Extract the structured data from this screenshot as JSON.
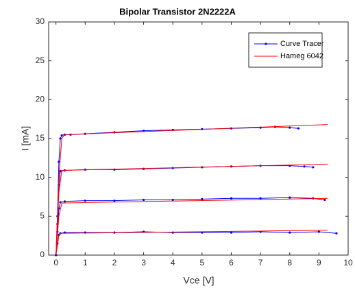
{
  "chart_data": {
    "type": "line",
    "title": "Bipolar Transistor 2N2222A",
    "x_label": "Vce [V]",
    "y_label": "I [mA]",
    "xlim": [
      -0.25,
      10
    ],
    "ylim": [
      0,
      30
    ],
    "xticks": [
      0,
      1,
      2,
      3,
      4,
      5,
      6,
      7,
      8,
      9,
      10
    ],
    "yticks": [
      0,
      5,
      10,
      15,
      20,
      25,
      30
    ],
    "grid": false,
    "legend": "upper right",
    "series": [
      {
        "name": "Curve Tracer",
        "color": "#0000ff",
        "marker": true,
        "curves": [
          {
            "x": [
              0,
              0.05,
              0.1,
              0.15,
              0.2,
              0.3,
              0.5,
              1,
              2,
              3,
              4,
              5,
              6,
              7,
              7.5,
              8,
              8.3
            ],
            "y": [
              0,
              5,
              12,
              15,
              15.4,
              15.5,
              15.5,
              15.6,
              15.8,
              16,
              16.1,
              16.2,
              16.3,
              16.4,
              16.5,
              16.4,
              16.3
            ]
          },
          {
            "x": [
              0,
              0.05,
              0.1,
              0.15,
              0.3,
              1,
              2,
              3,
              4,
              5,
              6,
              7,
              8,
              8.5,
              8.8
            ],
            "y": [
              0,
              4,
              9,
              10.8,
              10.9,
              11,
              11,
              11.1,
              11.2,
              11.3,
              11.4,
              11.5,
              11.5,
              11.4,
              11.3
            ]
          },
          {
            "x": [
              0,
              0.05,
              0.1,
              0.15,
              0.3,
              1,
              2,
              3,
              4,
              5,
              6,
              7,
              8,
              8.8,
              9.2
            ],
            "y": [
              0,
              3,
              6,
              6.8,
              6.9,
              7,
              7,
              7.1,
              7.1,
              7.2,
              7.3,
              7.3,
              7.4,
              7.3,
              7.1
            ]
          },
          {
            "x": [
              0,
              0.05,
              0.1,
              0.15,
              0.3,
              1,
              2,
              3,
              4,
              5,
              6,
              7,
              8,
              9,
              9.6
            ],
            "y": [
              0,
              1.5,
              2.6,
              2.8,
              2.9,
              2.9,
              2.9,
              3,
              2.9,
              2.9,
              2.9,
              3,
              2.9,
              3,
              2.8
            ]
          }
        ]
      },
      {
        "name": "Hameg 6042",
        "color": "#ff0000",
        "marker": false,
        "curves": [
          {
            "x": [
              0,
              0.1,
              0.2,
              0.3,
              9.3
            ],
            "y": [
              0,
              10,
              15,
              15.5,
              16.8
            ]
          },
          {
            "x": [
              0,
              0.1,
              0.2,
              9.3
            ],
            "y": [
              0,
              8,
              10.9,
              11.7
            ]
          },
          {
            "x": [
              0,
              0.1,
              0.2,
              9.3
            ],
            "y": [
              0,
              5,
              6.7,
              7.3
            ]
          },
          {
            "x": [
              0,
              0.1,
              0.15,
              9.3
            ],
            "y": [
              0,
              2.5,
              2.8,
              3.2
            ]
          }
        ]
      }
    ]
  }
}
